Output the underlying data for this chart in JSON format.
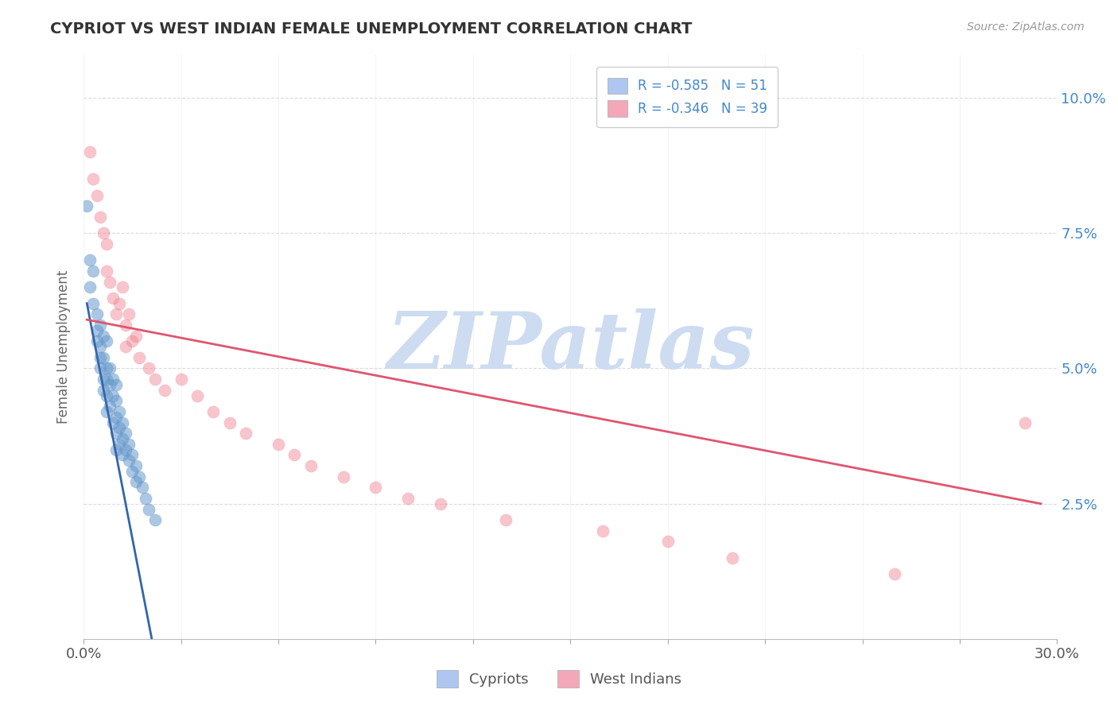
{
  "title": "CYPRIOT VS WEST INDIAN FEMALE UNEMPLOYMENT CORRELATION CHART",
  "source": "Source: ZipAtlas.com",
  "ylabel": "Female Unemployment",
  "ytick_labels": [
    "2.5%",
    "5.0%",
    "7.5%",
    "10.0%"
  ],
  "ytick_values": [
    0.025,
    0.05,
    0.075,
    0.1
  ],
  "xlim": [
    0.0,
    0.3
  ],
  "ylim": [
    0.0,
    0.108
  ],
  "legend_entries": [
    {
      "label": "R = -0.585   N = 51",
      "color": "#aec6f0"
    },
    {
      "label": "R = -0.346   N = 39",
      "color": "#f4a7b9"
    }
  ],
  "legend_labels_bottom": [
    "Cypriots",
    "West Indians"
  ],
  "watermark": "ZIPatlas",
  "watermark_color": "#cddcf0",
  "background_color": "#ffffff",
  "grid_color": "#cccccc",
  "blue_dot_color": "#6699cc",
  "pink_dot_color": "#f08090",
  "blue_line_color": "#3366aa",
  "pink_line_color": "#e05570",
  "blue_line_x": [
    0.001,
    0.021
  ],
  "blue_line_y": [
    0.062,
    0.0
  ],
  "pink_line_x": [
    0.001,
    0.295
  ],
  "pink_line_y": [
    0.059,
    0.025
  ],
  "cypriot_x": [
    0.001,
    0.002,
    0.002,
    0.003,
    0.003,
    0.004,
    0.004,
    0.004,
    0.005,
    0.005,
    0.005,
    0.005,
    0.006,
    0.006,
    0.006,
    0.006,
    0.007,
    0.007,
    0.007,
    0.007,
    0.007,
    0.008,
    0.008,
    0.008,
    0.009,
    0.009,
    0.009,
    0.01,
    0.01,
    0.01,
    0.01,
    0.01,
    0.011,
    0.011,
    0.011,
    0.012,
    0.012,
    0.012,
    0.013,
    0.013,
    0.014,
    0.014,
    0.015,
    0.015,
    0.016,
    0.016,
    0.017,
    0.018,
    0.019,
    0.02,
    0.022
  ],
  "cypriot_y": [
    0.08,
    0.07,
    0.065,
    0.068,
    0.062,
    0.06,
    0.057,
    0.055,
    0.058,
    0.054,
    0.052,
    0.05,
    0.056,
    0.052,
    0.048,
    0.046,
    0.055,
    0.05,
    0.048,
    0.045,
    0.042,
    0.05,
    0.047,
    0.043,
    0.048,
    0.045,
    0.04,
    0.047,
    0.044,
    0.041,
    0.038,
    0.035,
    0.042,
    0.039,
    0.036,
    0.04,
    0.037,
    0.034,
    0.038,
    0.035,
    0.036,
    0.033,
    0.034,
    0.031,
    0.032,
    0.029,
    0.03,
    0.028,
    0.026,
    0.024,
    0.022
  ],
  "westindian_x": [
    0.002,
    0.003,
    0.004,
    0.005,
    0.006,
    0.007,
    0.007,
    0.008,
    0.009,
    0.01,
    0.011,
    0.012,
    0.013,
    0.013,
    0.014,
    0.015,
    0.016,
    0.017,
    0.02,
    0.022,
    0.025,
    0.03,
    0.035,
    0.04,
    0.045,
    0.05,
    0.06,
    0.065,
    0.07,
    0.08,
    0.09,
    0.1,
    0.11,
    0.13,
    0.16,
    0.18,
    0.2,
    0.25,
    0.29
  ],
  "westindian_y": [
    0.09,
    0.085,
    0.082,
    0.078,
    0.075,
    0.073,
    0.068,
    0.066,
    0.063,
    0.06,
    0.062,
    0.065,
    0.058,
    0.054,
    0.06,
    0.055,
    0.056,
    0.052,
    0.05,
    0.048,
    0.046,
    0.048,
    0.045,
    0.042,
    0.04,
    0.038,
    0.036,
    0.034,
    0.032,
    0.03,
    0.028,
    0.026,
    0.025,
    0.022,
    0.02,
    0.018,
    0.015,
    0.012,
    0.04
  ]
}
